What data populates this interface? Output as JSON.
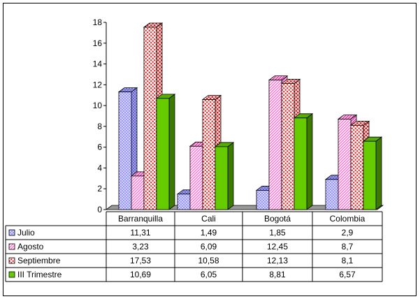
{
  "chart_data": {
    "type": "bar",
    "title": "",
    "xlabel": "",
    "ylabel": "",
    "ylim": [
      0,
      18
    ],
    "yticks": [
      0,
      2,
      4,
      6,
      8,
      10,
      12,
      14,
      16,
      18
    ],
    "categories": [
      "Barranquilla",
      "Cali",
      "Bogotá",
      "Colombia"
    ],
    "series": [
      {
        "name": "Julio",
        "values": [
          11.31,
          1.49,
          1.85,
          2.9
        ],
        "labels": [
          "11,31",
          "1,49",
          "1,85",
          "2,9"
        ],
        "color": "#9999ff",
        "pattern": "dots"
      },
      {
        "name": "Agosto",
        "values": [
          3.23,
          6.09,
          12.45,
          8.7
        ],
        "labels": [
          "3,23",
          "6,09",
          "12,45",
          "8,7"
        ],
        "color": "#ff66cc",
        "pattern": "diagonal"
      },
      {
        "name": "Septiembre",
        "values": [
          17.53,
          10.58,
          12.13,
          8.1
        ],
        "labels": [
          "17,53",
          "10,58",
          "12,13",
          "8,1"
        ],
        "color": "#ee2222",
        "pattern": "red-dots"
      },
      {
        "name": "III Trimestre",
        "values": [
          10.69,
          6.05,
          8.81,
          6.57
        ],
        "labels": [
          "10,69",
          "6,05",
          "8,81",
          "6,57"
        ],
        "color": "#66cc00",
        "pattern": "solid"
      }
    ],
    "grid": false,
    "floor_color": "#999999",
    "legend": "data-table"
  }
}
